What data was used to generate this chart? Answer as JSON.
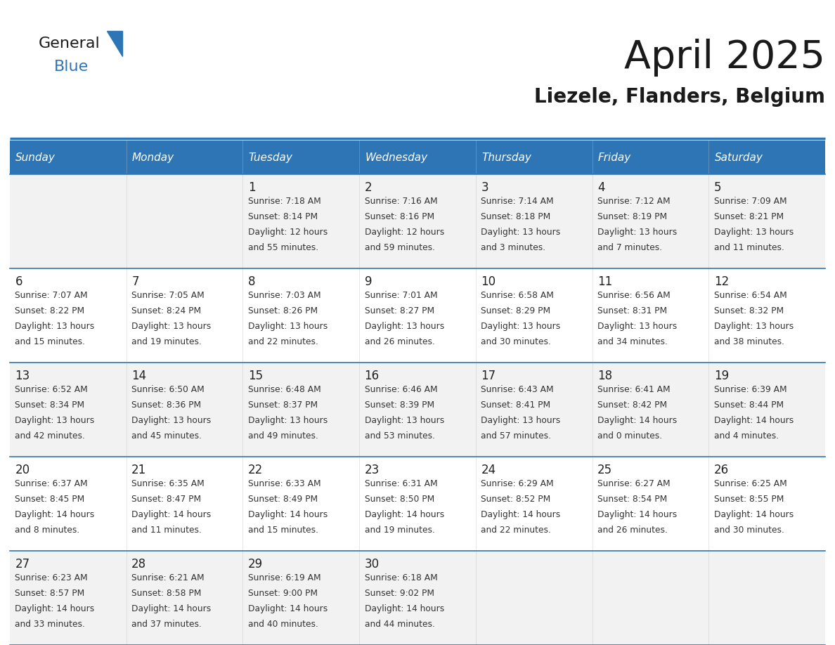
{
  "title": "April 2025",
  "subtitle": "Liezele, Flanders, Belgium",
  "header_bg": "#2E75B6",
  "header_text_color": "#FFFFFF",
  "cell_bg_odd": "#F2F2F2",
  "cell_bg_even": "#FFFFFF",
  "border_color": "#2E75B6",
  "text_color": "#333333",
  "day_headers": [
    "Sunday",
    "Monday",
    "Tuesday",
    "Wednesday",
    "Thursday",
    "Friday",
    "Saturday"
  ],
  "weeks": [
    [
      {
        "day": "",
        "sunrise": "",
        "sunset": "",
        "daylight": ""
      },
      {
        "day": "",
        "sunrise": "",
        "sunset": "",
        "daylight": ""
      },
      {
        "day": "1",
        "sunrise": "Sunrise: 7:18 AM",
        "sunset": "Sunset: 8:14 PM",
        "daylight": "Daylight: 12 hours\nand 55 minutes."
      },
      {
        "day": "2",
        "sunrise": "Sunrise: 7:16 AM",
        "sunset": "Sunset: 8:16 PM",
        "daylight": "Daylight: 12 hours\nand 59 minutes."
      },
      {
        "day": "3",
        "sunrise": "Sunrise: 7:14 AM",
        "sunset": "Sunset: 8:18 PM",
        "daylight": "Daylight: 13 hours\nand 3 minutes."
      },
      {
        "day": "4",
        "sunrise": "Sunrise: 7:12 AM",
        "sunset": "Sunset: 8:19 PM",
        "daylight": "Daylight: 13 hours\nand 7 minutes."
      },
      {
        "day": "5",
        "sunrise": "Sunrise: 7:09 AM",
        "sunset": "Sunset: 8:21 PM",
        "daylight": "Daylight: 13 hours\nand 11 minutes."
      }
    ],
    [
      {
        "day": "6",
        "sunrise": "Sunrise: 7:07 AM",
        "sunset": "Sunset: 8:22 PM",
        "daylight": "Daylight: 13 hours\nand 15 minutes."
      },
      {
        "day": "7",
        "sunrise": "Sunrise: 7:05 AM",
        "sunset": "Sunset: 8:24 PM",
        "daylight": "Daylight: 13 hours\nand 19 minutes."
      },
      {
        "day": "8",
        "sunrise": "Sunrise: 7:03 AM",
        "sunset": "Sunset: 8:26 PM",
        "daylight": "Daylight: 13 hours\nand 22 minutes."
      },
      {
        "day": "9",
        "sunrise": "Sunrise: 7:01 AM",
        "sunset": "Sunset: 8:27 PM",
        "daylight": "Daylight: 13 hours\nand 26 minutes."
      },
      {
        "day": "10",
        "sunrise": "Sunrise: 6:58 AM",
        "sunset": "Sunset: 8:29 PM",
        "daylight": "Daylight: 13 hours\nand 30 minutes."
      },
      {
        "day": "11",
        "sunrise": "Sunrise: 6:56 AM",
        "sunset": "Sunset: 8:31 PM",
        "daylight": "Daylight: 13 hours\nand 34 minutes."
      },
      {
        "day": "12",
        "sunrise": "Sunrise: 6:54 AM",
        "sunset": "Sunset: 8:32 PM",
        "daylight": "Daylight: 13 hours\nand 38 minutes."
      }
    ],
    [
      {
        "day": "13",
        "sunrise": "Sunrise: 6:52 AM",
        "sunset": "Sunset: 8:34 PM",
        "daylight": "Daylight: 13 hours\nand 42 minutes."
      },
      {
        "day": "14",
        "sunrise": "Sunrise: 6:50 AM",
        "sunset": "Sunset: 8:36 PM",
        "daylight": "Daylight: 13 hours\nand 45 minutes."
      },
      {
        "day": "15",
        "sunrise": "Sunrise: 6:48 AM",
        "sunset": "Sunset: 8:37 PM",
        "daylight": "Daylight: 13 hours\nand 49 minutes."
      },
      {
        "day": "16",
        "sunrise": "Sunrise: 6:46 AM",
        "sunset": "Sunset: 8:39 PM",
        "daylight": "Daylight: 13 hours\nand 53 minutes."
      },
      {
        "day": "17",
        "sunrise": "Sunrise: 6:43 AM",
        "sunset": "Sunset: 8:41 PM",
        "daylight": "Daylight: 13 hours\nand 57 minutes."
      },
      {
        "day": "18",
        "sunrise": "Sunrise: 6:41 AM",
        "sunset": "Sunset: 8:42 PM",
        "daylight": "Daylight: 14 hours\nand 0 minutes."
      },
      {
        "day": "19",
        "sunrise": "Sunrise: 6:39 AM",
        "sunset": "Sunset: 8:44 PM",
        "daylight": "Daylight: 14 hours\nand 4 minutes."
      }
    ],
    [
      {
        "day": "20",
        "sunrise": "Sunrise: 6:37 AM",
        "sunset": "Sunset: 8:45 PM",
        "daylight": "Daylight: 14 hours\nand 8 minutes."
      },
      {
        "day": "21",
        "sunrise": "Sunrise: 6:35 AM",
        "sunset": "Sunset: 8:47 PM",
        "daylight": "Daylight: 14 hours\nand 11 minutes."
      },
      {
        "day": "22",
        "sunrise": "Sunrise: 6:33 AM",
        "sunset": "Sunset: 8:49 PM",
        "daylight": "Daylight: 14 hours\nand 15 minutes."
      },
      {
        "day": "23",
        "sunrise": "Sunrise: 6:31 AM",
        "sunset": "Sunset: 8:50 PM",
        "daylight": "Daylight: 14 hours\nand 19 minutes."
      },
      {
        "day": "24",
        "sunrise": "Sunrise: 6:29 AM",
        "sunset": "Sunset: 8:52 PM",
        "daylight": "Daylight: 14 hours\nand 22 minutes."
      },
      {
        "day": "25",
        "sunrise": "Sunrise: 6:27 AM",
        "sunset": "Sunset: 8:54 PM",
        "daylight": "Daylight: 14 hours\nand 26 minutes."
      },
      {
        "day": "26",
        "sunrise": "Sunrise: 6:25 AM",
        "sunset": "Sunset: 8:55 PM",
        "daylight": "Daylight: 14 hours\nand 30 minutes."
      }
    ],
    [
      {
        "day": "27",
        "sunrise": "Sunrise: 6:23 AM",
        "sunset": "Sunset: 8:57 PM",
        "daylight": "Daylight: 14 hours\nand 33 minutes."
      },
      {
        "day": "28",
        "sunrise": "Sunrise: 6:21 AM",
        "sunset": "Sunset: 8:58 PM",
        "daylight": "Daylight: 14 hours\nand 37 minutes."
      },
      {
        "day": "29",
        "sunrise": "Sunrise: 6:19 AM",
        "sunset": "Sunset: 9:00 PM",
        "daylight": "Daylight: 14 hours\nand 40 minutes."
      },
      {
        "day": "30",
        "sunrise": "Sunrise: 6:18 AM",
        "sunset": "Sunset: 9:02 PM",
        "daylight": "Daylight: 14 hours\nand 44 minutes."
      },
      {
        "day": "",
        "sunrise": "",
        "sunset": "",
        "daylight": ""
      },
      {
        "day": "",
        "sunrise": "",
        "sunset": "",
        "daylight": ""
      },
      {
        "day": "",
        "sunrise": "",
        "sunset": "",
        "daylight": ""
      }
    ]
  ]
}
